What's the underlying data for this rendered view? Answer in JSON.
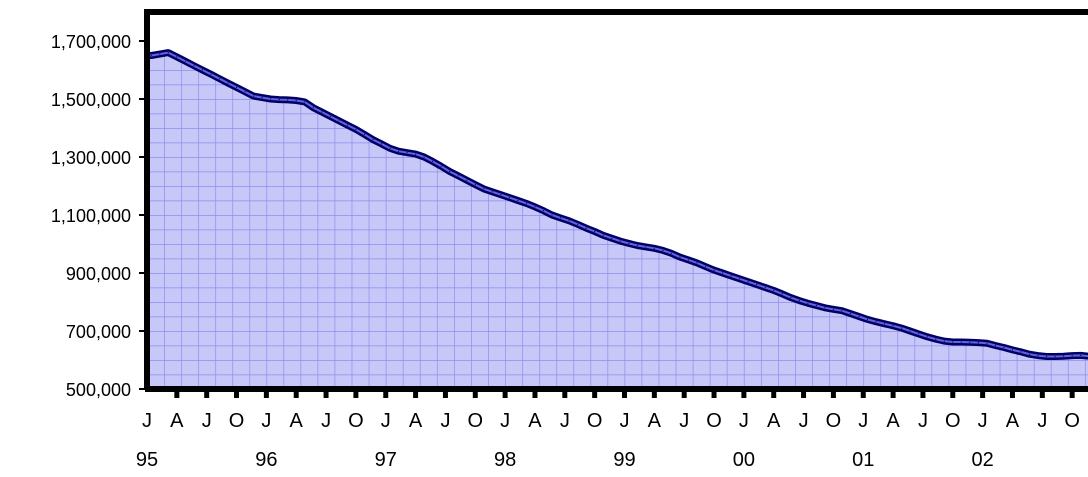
{
  "chart_data": {
    "type": "area",
    "title": "",
    "xlabel": "",
    "ylabel": "",
    "ylim": [
      500000,
      1800000
    ],
    "yticks": [
      500000,
      700000,
      900000,
      1100000,
      1300000,
      1500000,
      1700000
    ],
    "ytick_labels": [
      "500,000",
      "700,000",
      "900,000",
      "1,100,000",
      "1,300,000",
      "1,500,000",
      "1,700,000"
    ],
    "x_start": "1995-01",
    "x_end": "2002-12",
    "month_labels": [
      "J",
      "A",
      "J",
      "O",
      "J",
      "A",
      "J",
      "O",
      "J",
      "A",
      "J",
      "O",
      "J",
      "A",
      "J",
      "O",
      "J",
      "A",
      "J",
      "O",
      "J",
      "A",
      "J",
      "O",
      "J",
      "A",
      "J",
      "O",
      "J",
      "A",
      "J",
      "O"
    ],
    "year_labels": [
      "95",
      "96",
      "97",
      "98",
      "99",
      "00",
      "01",
      "02"
    ],
    "grid": true,
    "legend": "none",
    "colors": {
      "line": "#000066",
      "fill": "#c8c8f8",
      "grid": "#8c8cf0",
      "frame": "#000000"
    },
    "series": [
      {
        "values": [
          1650000,
          1655000,
          1660000,
          1645000,
          1630000,
          1615000,
          1600000,
          1585000,
          1570000,
          1555000,
          1540000,
          1525000,
          1510000,
          1505000,
          1500000,
          1498000,
          1497000,
          1495000,
          1490000,
          1470000,
          1455000,
          1440000,
          1425000,
          1410000,
          1395000,
          1378000,
          1360000,
          1345000,
          1330000,
          1320000,
          1315000,
          1310000,
          1300000,
          1285000,
          1268000,
          1250000,
          1235000,
          1220000,
          1205000,
          1190000,
          1180000,
          1170000,
          1160000,
          1150000,
          1140000,
          1128000,
          1115000,
          1100000,
          1090000,
          1080000,
          1068000,
          1055000,
          1043000,
          1030000,
          1020000,
          1010000,
          1002000,
          995000,
          990000,
          985000,
          978000,
          968000,
          955000,
          945000,
          935000,
          922000,
          910000,
          900000,
          890000,
          880000,
          870000,
          860000,
          850000,
          840000,
          828000,
          815000,
          805000,
          796000,
          788000,
          780000,
          775000,
          770000,
          760000,
          750000,
          740000,
          732000,
          725000,
          718000,
          710000,
          700000,
          690000,
          680000,
          672000,
          665000,
          662000,
          662000,
          661000,
          660000,
          658000,
          650000,
          643000,
          635000,
          628000,
          620000,
          615000,
          612000,
          612000,
          613000,
          615000,
          616000,
          613000,
          610000
        ]
      }
    ]
  }
}
